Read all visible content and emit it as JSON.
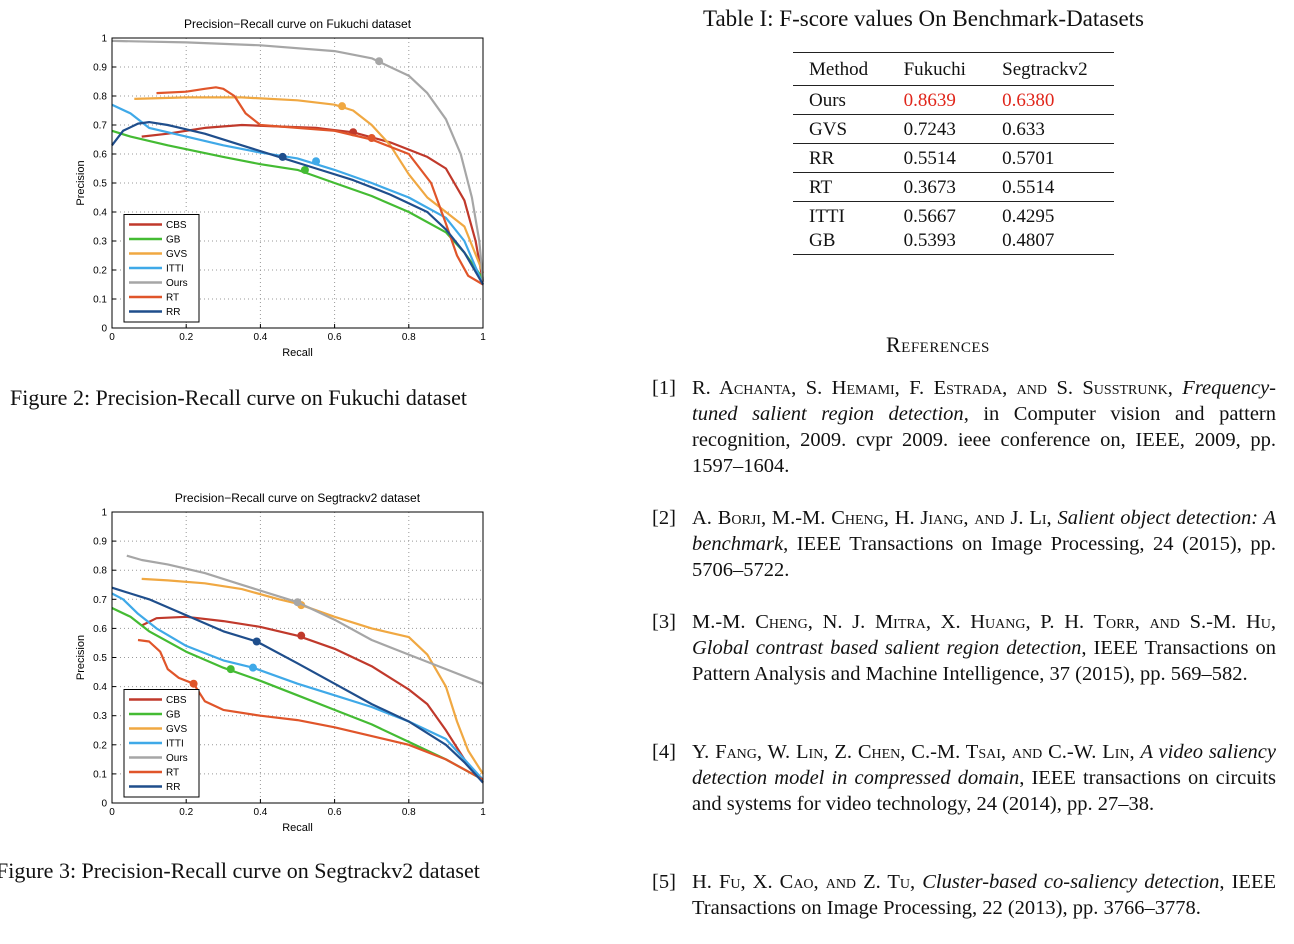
{
  "figures": [
    {
      "caption": "Figure 2: Precision-Recall curve on Fukuchi dataset"
    },
    {
      "caption": "Figure 3: Precision-Recall curve on Segtrackv2 dataset"
    }
  ],
  "chart_data": [
    {
      "type": "line",
      "title": "Precision−Recall curve on Fukuchi dataset",
      "xlabel": "Recall",
      "ylabel": "Precision",
      "xlim": [
        0,
        1
      ],
      "ylim": [
        0,
        1
      ],
      "x_ticks": [
        "0",
        "0.2",
        "0.4",
        "0.6",
        "0.8",
        "1"
      ],
      "y_ticks": [
        "0",
        "0.1",
        "0.2",
        "0.3",
        "0.4",
        "0.5",
        "0.6",
        "0.7",
        "0.8",
        "0.9",
        "1"
      ],
      "grid": true,
      "legend_position": "bottom-left",
      "series": [
        {
          "name": "CBS",
          "color": "#c0392b",
          "points": [
            [
              0.08,
              0.66
            ],
            [
              0.15,
              0.67
            ],
            [
              0.25,
              0.69
            ],
            [
              0.35,
              0.7
            ],
            [
              0.45,
              0.695
            ],
            [
              0.55,
              0.69
            ],
            [
              0.65,
              0.675
            ],
            [
              0.75,
              0.64
            ],
            [
              0.85,
              0.59
            ],
            [
              0.9,
              0.55
            ],
            [
              0.95,
              0.44
            ],
            [
              0.98,
              0.3
            ],
            [
              1.0,
              0.16
            ]
          ],
          "marker": [
            0.65,
            0.675
          ]
        },
        {
          "name": "GB",
          "color": "#44bb33",
          "points": [
            [
              0.0,
              0.68
            ],
            [
              0.05,
              0.66
            ],
            [
              0.15,
              0.63
            ],
            [
              0.3,
              0.59
            ],
            [
              0.4,
              0.565
            ],
            [
              0.5,
              0.545
            ],
            [
              0.6,
              0.5
            ],
            [
              0.7,
              0.455
            ],
            [
              0.8,
              0.4
            ],
            [
              0.9,
              0.33
            ],
            [
              0.95,
              0.26
            ],
            [
              1.0,
              0.17
            ]
          ],
          "marker": [
            0.52,
            0.545
          ]
        },
        {
          "name": "GVS",
          "color": "#f0a842",
          "points": [
            [
              0.06,
              0.79
            ],
            [
              0.2,
              0.795
            ],
            [
              0.35,
              0.795
            ],
            [
              0.5,
              0.785
            ],
            [
              0.6,
              0.77
            ],
            [
              0.65,
              0.75
            ],
            [
              0.7,
              0.7
            ],
            [
              0.75,
              0.63
            ],
            [
              0.8,
              0.53
            ],
            [
              0.85,
              0.45
            ],
            [
              0.9,
              0.4
            ],
            [
              0.95,
              0.35
            ],
            [
              1.0,
              0.19
            ]
          ],
          "marker": [
            0.62,
            0.765
          ]
        },
        {
          "name": "ITTI",
          "color": "#3fa9e8",
          "points": [
            [
              0.0,
              0.77
            ],
            [
              0.05,
              0.74
            ],
            [
              0.1,
              0.69
            ],
            [
              0.2,
              0.66
            ],
            [
              0.3,
              0.63
            ],
            [
              0.4,
              0.605
            ],
            [
              0.5,
              0.585
            ],
            [
              0.6,
              0.545
            ],
            [
              0.7,
              0.5
            ],
            [
              0.8,
              0.45
            ],
            [
              0.9,
              0.38
            ],
            [
              0.95,
              0.3
            ],
            [
              1.0,
              0.15
            ]
          ],
          "marker": [
            0.55,
            0.575
          ]
        },
        {
          "name": "Ours",
          "color": "#a6a6a6",
          "points": [
            [
              0.0,
              0.99
            ],
            [
              0.2,
              0.985
            ],
            [
              0.4,
              0.975
            ],
            [
              0.6,
              0.955
            ],
            [
              0.7,
              0.93
            ],
            [
              0.8,
              0.87
            ],
            [
              0.85,
              0.81
            ],
            [
              0.9,
              0.72
            ],
            [
              0.94,
              0.6
            ],
            [
              0.97,
              0.45
            ],
            [
              0.99,
              0.3
            ],
            [
              1.0,
              0.16
            ]
          ],
          "marker": [
            0.72,
            0.92
          ]
        },
        {
          "name": "RT",
          "color": "#e0552a",
          "points": [
            [
              0.12,
              0.81
            ],
            [
              0.2,
              0.815
            ],
            [
              0.25,
              0.825
            ],
            [
              0.28,
              0.83
            ],
            [
              0.3,
              0.825
            ],
            [
              0.33,
              0.8
            ],
            [
              0.36,
              0.74
            ],
            [
              0.4,
              0.7
            ],
            [
              0.5,
              0.69
            ],
            [
              0.6,
              0.68
            ],
            [
              0.7,
              0.65
            ],
            [
              0.8,
              0.6
            ],
            [
              0.86,
              0.5
            ],
            [
              0.9,
              0.36
            ],
            [
              0.93,
              0.25
            ],
            [
              0.96,
              0.18
            ],
            [
              1.0,
              0.15
            ]
          ],
          "marker": [
            0.7,
            0.655
          ]
        },
        {
          "name": "RR",
          "color": "#1f4e8c",
          "points": [
            [
              0.0,
              0.63
            ],
            [
              0.03,
              0.68
            ],
            [
              0.07,
              0.705
            ],
            [
              0.1,
              0.71
            ],
            [
              0.15,
              0.7
            ],
            [
              0.25,
              0.67
            ],
            [
              0.35,
              0.63
            ],
            [
              0.45,
              0.59
            ],
            [
              0.55,
              0.55
            ],
            [
              0.65,
              0.51
            ],
            [
              0.75,
              0.46
            ],
            [
              0.85,
              0.4
            ],
            [
              0.9,
              0.34
            ],
            [
              0.95,
              0.26
            ],
            [
              1.0,
              0.15
            ]
          ],
          "marker": [
            0.46,
            0.59
          ]
        }
      ]
    },
    {
      "type": "line",
      "title": "Precision−Recall curve on Segtrackv2 dataset",
      "xlabel": "Recall",
      "ylabel": "Precision",
      "xlim": [
        0,
        1
      ],
      "ylim": [
        0,
        1
      ],
      "x_ticks": [
        "0",
        "0.2",
        "0.4",
        "0.6",
        "0.8",
        "1"
      ],
      "y_ticks": [
        "0",
        "0.1",
        "0.2",
        "0.3",
        "0.4",
        "0.5",
        "0.6",
        "0.7",
        "0.8",
        "0.9",
        "1"
      ],
      "grid": true,
      "legend_position": "bottom-left",
      "series": [
        {
          "name": "CBS",
          "color": "#c0392b",
          "points": [
            [
              0.08,
              0.61
            ],
            [
              0.12,
              0.635
            ],
            [
              0.2,
              0.64
            ],
            [
              0.3,
              0.625
            ],
            [
              0.4,
              0.605
            ],
            [
              0.5,
              0.575
            ],
            [
              0.6,
              0.53
            ],
            [
              0.7,
              0.47
            ],
            [
              0.8,
              0.39
            ],
            [
              0.85,
              0.34
            ],
            [
              0.9,
              0.25
            ],
            [
              0.95,
              0.15
            ],
            [
              1.0,
              0.07
            ]
          ],
          "marker": [
            0.51,
            0.575
          ]
        },
        {
          "name": "GB",
          "color": "#44bb33",
          "points": [
            [
              0.0,
              0.67
            ],
            [
              0.05,
              0.64
            ],
            [
              0.1,
              0.59
            ],
            [
              0.2,
              0.52
            ],
            [
              0.3,
              0.465
            ],
            [
              0.4,
              0.42
            ],
            [
              0.5,
              0.37
            ],
            [
              0.6,
              0.32
            ],
            [
              0.7,
              0.27
            ],
            [
              0.8,
              0.21
            ],
            [
              0.9,
              0.15
            ],
            [
              1.0,
              0.08
            ]
          ],
          "marker": [
            0.32,
            0.46
          ]
        },
        {
          "name": "GVS",
          "color": "#f0a842",
          "points": [
            [
              0.08,
              0.77
            ],
            [
              0.15,
              0.765
            ],
            [
              0.25,
              0.755
            ],
            [
              0.35,
              0.735
            ],
            [
              0.45,
              0.7
            ],
            [
              0.5,
              0.685
            ],
            [
              0.6,
              0.64
            ],
            [
              0.7,
              0.6
            ],
            [
              0.8,
              0.57
            ],
            [
              0.85,
              0.51
            ],
            [
              0.9,
              0.4
            ],
            [
              0.93,
              0.28
            ],
            [
              0.96,
              0.18
            ],
            [
              1.0,
              0.1
            ]
          ],
          "marker": [
            0.51,
            0.68
          ]
        },
        {
          "name": "ITTI",
          "color": "#3fa9e8",
          "points": [
            [
              0.0,
              0.72
            ],
            [
              0.03,
              0.7
            ],
            [
              0.07,
              0.65
            ],
            [
              0.12,
              0.6
            ],
            [
              0.2,
              0.54
            ],
            [
              0.3,
              0.49
            ],
            [
              0.38,
              0.465
            ],
            [
              0.5,
              0.41
            ],
            [
              0.6,
              0.37
            ],
            [
              0.7,
              0.33
            ],
            [
              0.8,
              0.28
            ],
            [
              0.9,
              0.22
            ],
            [
              0.95,
              0.15
            ],
            [
              1.0,
              0.08
            ]
          ],
          "marker": [
            0.38,
            0.465
          ]
        },
        {
          "name": "Ours",
          "color": "#a6a6a6",
          "points": [
            [
              0.04,
              0.85
            ],
            [
              0.08,
              0.835
            ],
            [
              0.15,
              0.82
            ],
            [
              0.25,
              0.79
            ],
            [
              0.35,
              0.75
            ],
            [
              0.45,
              0.71
            ],
            [
              0.5,
              0.69
            ],
            [
              0.6,
              0.63
            ],
            [
              0.7,
              0.56
            ],
            [
              0.8,
              0.51
            ],
            [
              0.9,
              0.46
            ],
            [
              1.0,
              0.41
            ]
          ],
          "marker": [
            0.5,
            0.69
          ]
        },
        {
          "name": "RT",
          "color": "#e0552a",
          "points": [
            [
              0.07,
              0.56
            ],
            [
              0.1,
              0.555
            ],
            [
              0.13,
              0.52
            ],
            [
              0.15,
              0.46
            ],
            [
              0.18,
              0.43
            ],
            [
              0.22,
              0.41
            ],
            [
              0.25,
              0.35
            ],
            [
              0.3,
              0.32
            ],
            [
              0.4,
              0.3
            ],
            [
              0.5,
              0.285
            ],
            [
              0.6,
              0.26
            ],
            [
              0.7,
              0.23
            ],
            [
              0.8,
              0.2
            ],
            [
              0.9,
              0.15
            ],
            [
              1.0,
              0.08
            ]
          ],
          "marker": [
            0.22,
            0.41
          ]
        },
        {
          "name": "RR",
          "color": "#1f4e8c",
          "points": [
            [
              0.0,
              0.74
            ],
            [
              0.05,
              0.72
            ],
            [
              0.1,
              0.7
            ],
            [
              0.2,
              0.645
            ],
            [
              0.3,
              0.59
            ],
            [
              0.39,
              0.555
            ],
            [
              0.5,
              0.48
            ],
            [
              0.6,
              0.41
            ],
            [
              0.7,
              0.34
            ],
            [
              0.8,
              0.28
            ],
            [
              0.9,
              0.2
            ],
            [
              0.95,
              0.14
            ],
            [
              1.0,
              0.07
            ]
          ],
          "marker": [
            0.39,
            0.555
          ]
        }
      ]
    }
  ],
  "table": {
    "title": "Table I: F-score values On Benchmark-Datasets",
    "headers": [
      "Method",
      "Fukuchi",
      "Segtrackv2"
    ],
    "rows": [
      {
        "method": "Ours",
        "fukuchi": "0.8639",
        "segtrack": "0.6380",
        "highlight_color": "#e0261b"
      },
      {
        "method": "GVS",
        "fukuchi": "0.7243",
        "segtrack": "0.633"
      },
      {
        "method": "RR",
        "fukuchi": "0.5514",
        "segtrack": "0.5701"
      },
      {
        "method": "RT",
        "fukuchi": "0.3673",
        "segtrack": "0.5514"
      },
      {
        "method": "ITTI",
        "fukuchi": "0.5667",
        "segtrack": "0.4295"
      },
      {
        "method": "GB",
        "fukuchi": "0.5393",
        "segtrack": "0.4807"
      }
    ]
  },
  "references": {
    "heading": "References",
    "items": [
      {
        "num": "[1]",
        "authors": "R. Achanta, S. Hemami, F. Estrada, and S. Susstrunk,",
        "title": "Frequency-tuned salient region detection",
        "rest": ", in Computer vision and pattern recognition, 2009. cvpr 2009. ieee conference on, IEEE, 2009, pp. 1597–1604."
      },
      {
        "num": "[2]",
        "authors": "A. Borji, M.-M. Cheng, H. Jiang, and J. Li,",
        "title": "Salient object detection: A benchmark",
        "rest": ", IEEE Transactions on Image Processing, 24 (2015), pp. 5706–5722."
      },
      {
        "num": "[3]",
        "authors": "M.-M. Cheng, N. J. Mitra, X. Huang, P. H. Torr, and S.-M. Hu,",
        "title": "Global contrast based salient region detection",
        "rest": ", IEEE Transactions on Pattern Analysis and Machine Intelligence, 37 (2015), pp. 569–582."
      },
      {
        "num": "[4]",
        "authors": "Y. Fang, W. Lin, Z. Chen, C.-M. Tsai, and C.-W. Lin,",
        "title": "A video saliency detection model in compressed domain",
        "rest": ", IEEE transactions on circuits and systems for video technology, 24 (2014), pp. 27–38."
      },
      {
        "num": "[5]",
        "authors": "H. Fu, X. Cao, and Z. Tu,",
        "title": "Cluster-based co-saliency detection",
        "rest": ", IEEE Transactions on Image Processing, 22 (2013), pp. 3766–3778."
      }
    ]
  }
}
